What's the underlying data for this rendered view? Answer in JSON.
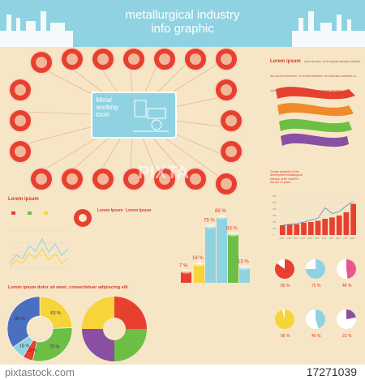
{
  "header": {
    "title_line1": "metallurgical industry",
    "title_line2": "info graphic"
  },
  "center": {
    "label_line1": "Metal",
    "label_line2": "working",
    "label_line3": "tools"
  },
  "icons": [
    "nail-icon",
    "hammer-icon",
    "anvil-icon",
    "bolt-icon",
    "factory-icon",
    "chisel-icon",
    "bucket-icon",
    "screw-icon",
    "wrench-icon",
    "welding-mask-icon",
    "grinder-icon",
    "bearing-icon",
    "tongs-icon",
    "truck-icon",
    "lathe-icon",
    "pipe-icon",
    "rolling-mill-icon",
    "clamp-icon",
    "drill-icon",
    "metal-sheet-icon",
    "pliers-icon",
    "file-icon",
    "ladle-icon",
    "saw-icon"
  ],
  "top_right": {
    "heading": "Lorem ipsum",
    "body": "dolor sit amet, sit mi regione delicata iudicabit, duo summo blandit eu, et eirmod efficiantur. Sea delicata maiestatis cu, nal liberis integre phaedrum no, vel eu accumsan ignotam."
  },
  "growth": {
    "text_line1": "Growth dynamics of the",
    "text_line2": "development metallurgical",
    "text_line3": "industry of the world for",
    "text_line4": "the last 10 years"
  },
  "left_section": {
    "heading": "Lorem ipsum",
    "col_heading1": "Lorem Ipsum",
    "col_heading2": "Lorem Ipsum"
  },
  "bottom_left": {
    "heading": "Lorem ipsum dolor sit amet, consectetuer adipiscing elit"
  },
  "watermark": {
    "brand": "pixtastock.com",
    "id": "17271039",
    "overlay": "PIXTA"
  },
  "colors": {
    "red": "#e8402f",
    "blue": "#8fd3e3",
    "cream": "#f6e6c6",
    "yellow": "#f6d43a",
    "green": "#6dbe45",
    "purple": "#8a4fa3",
    "orange": "#f08a2a",
    "pink": "#e8578c"
  },
  "chart_data": [
    {
      "type": "bar",
      "id": "growth-bars",
      "categories": [
        "2004",
        "2005",
        "2006",
        "2007",
        "2008",
        "2009",
        "2010",
        "2011",
        "2012",
        "2013",
        "2014"
      ],
      "values": [
        150,
        160,
        165,
        190,
        200,
        220,
        250,
        270,
        300,
        350,
        480
      ],
      "line_values": [
        150,
        165,
        175,
        200,
        230,
        260,
        420,
        330,
        360,
        450,
        520
      ],
      "ylim": [
        0,
        600
      ],
      "ticks": [
        "0",
        "100",
        "200",
        "300",
        "400",
        "500",
        "600"
      ]
    },
    {
      "type": "bar",
      "id": "cylinders",
      "labels": [
        "7 %",
        "18 %",
        "75 %",
        "89 %",
        "63 %",
        "13 %"
      ],
      "values": [
        7,
        18,
        75,
        89,
        63,
        13
      ]
    },
    {
      "type": "pie",
      "id": "small-pies",
      "labels": [
        "85 %",
        "75 %",
        "48 %",
        "96 %",
        "45 %",
        "22 %"
      ],
      "values": [
        85,
        75,
        48,
        96,
        45,
        22
      ]
    },
    {
      "type": "pie",
      "id": "donut-left",
      "labels": [
        "63 %",
        "75 %",
        "13 %",
        "18 %",
        "89 %"
      ],
      "values": [
        63,
        75,
        13,
        18,
        89
      ]
    }
  ]
}
